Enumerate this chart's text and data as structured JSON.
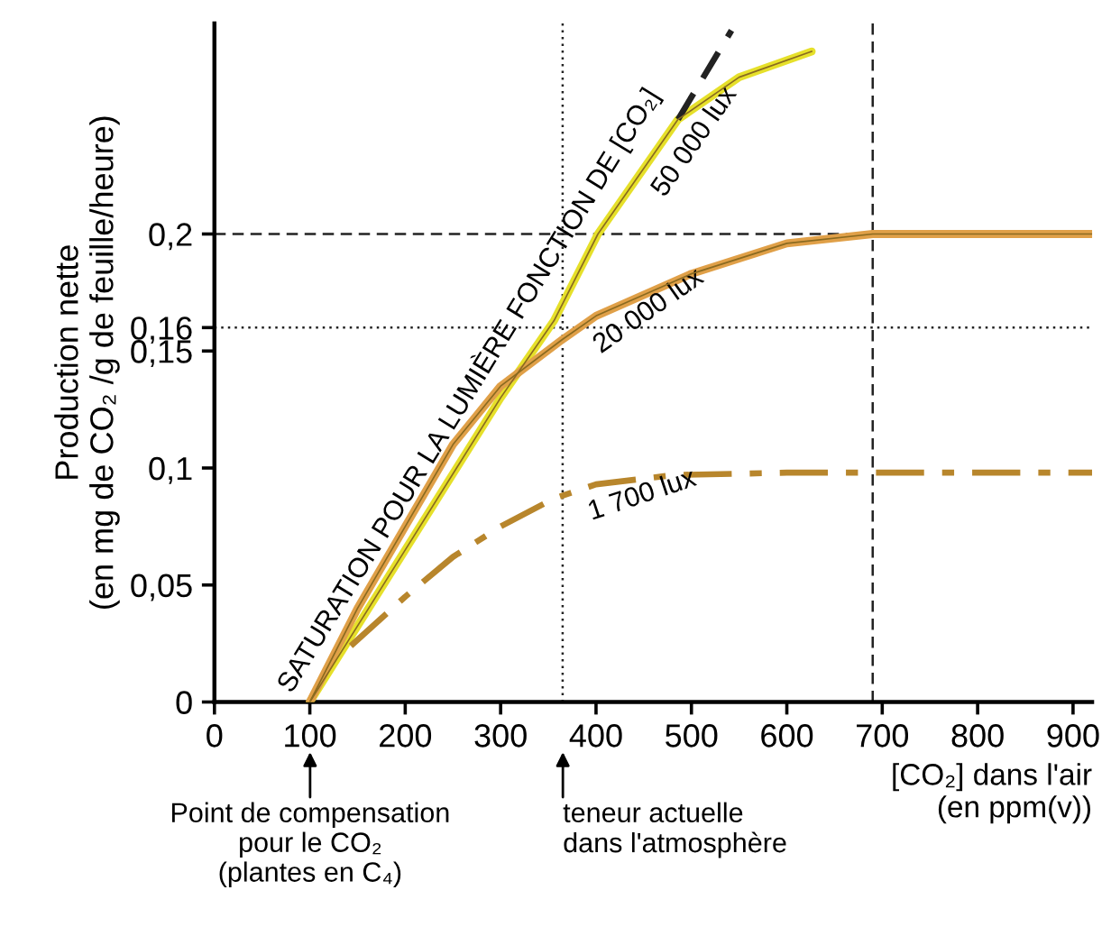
{
  "chart_data": {
    "type": "line",
    "xlabel": "[CO₂] dans l'air\n(en ppm(v))",
    "ylabel": "Production nette\n(en mg de CO₂ /g de feuille/heure)",
    "xlim": [
      0,
      920
    ],
    "ylim": [
      0,
      0.29
    ],
    "xticks": [
      0,
      100,
      200,
      300,
      400,
      500,
      600,
      700,
      800,
      900
    ],
    "yticks": [
      0,
      {
        "value": 0.05,
        "label": "0,05"
      },
      {
        "value": 0.1,
        "label": "0,1"
      },
      {
        "value": 0.15,
        "label": "0,15"
      },
      {
        "value": 0.16,
        "label": "0,16"
      },
      {
        "value": 0.2,
        "label": "0,2"
      }
    ],
    "grid": false,
    "series": [
      {
        "name": "50 000 lux",
        "color": "#e6e02a",
        "x": [
          100,
          200,
          300,
          356,
          402,
          486,
          550,
          626
        ],
        "values": [
          0,
          0.065,
          0.13,
          0.163,
          0.2,
          0.249,
          0.267,
          0.278
        ]
      },
      {
        "name": "20 000 lux",
        "color": "#e0a048",
        "x": [
          100,
          150,
          200,
          250,
          300,
          365,
          400,
          500,
          600,
          690,
          920
        ],
        "values": [
          0,
          0.04,
          0.075,
          0.11,
          0.135,
          0.155,
          0.165,
          0.183,
          0.196,
          0.2,
          0.2
        ]
      },
      {
        "name": "1 700 lux",
        "color": "#b8862c",
        "line_style": "dashdot",
        "x": [
          143,
          200,
          250,
          300,
          356,
          400,
          482,
          600,
          920
        ],
        "values": [
          0.024,
          0.045,
          0.062,
          0.075,
          0.087,
          0.093,
          0.097,
          0.098,
          0.098
        ]
      },
      {
        "color": "#222222",
        "line_style": "dashed",
        "x": [
          486,
          542
        ],
        "values": [
          0.249,
          0.287
        ]
      }
    ],
    "ref_lines": [
      {
        "axis": "y",
        "value": 0.2,
        "line_style": "dashed",
        "color": "#222222"
      },
      {
        "axis": "x",
        "value": 690,
        "line_style": "dashed",
        "color": "#222222"
      },
      {
        "axis": "y",
        "value": 0.16,
        "line_style": "dotted",
        "color": "#222222"
      },
      {
        "axis": "x",
        "value": 365,
        "line_style": "dotted",
        "color": "#222222"
      }
    ],
    "annotations": [
      {
        "text": "SATURATION POUR LA LUMIÈRE FONCTION DE [CO₂]",
        "x": 300,
        "y": 0.13
      },
      "Point de compensation\npour le CO₂\n(plantes en C₄)",
      "teneur actuelle\ndans l'atmosphère"
    ]
  }
}
